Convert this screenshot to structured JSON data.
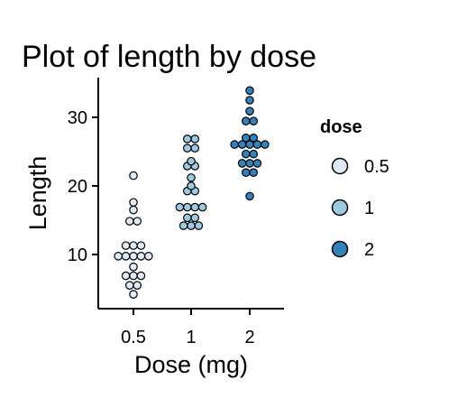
{
  "chart_data": {
    "type": "scatter",
    "subtype": "dotplot",
    "title": "Plot of length  by dose",
    "xlabel": "Dose (mg)",
    "ylabel": "Length",
    "categories": [
      "0.5",
      "1",
      "2"
    ],
    "yticks": [
      10,
      20,
      30
    ],
    "ylim": [
      2.2,
      35.5
    ],
    "grid": false,
    "legend": {
      "title": "dose",
      "position": "right",
      "entries": [
        "0.5",
        "1",
        "2"
      ]
    },
    "colors": {
      "0.5": "#deebf7",
      "1": "#9ecae1",
      "2": "#3182bd"
    },
    "series": [
      {
        "name": "0.5",
        "values": [
          4.2,
          11.5,
          7.3,
          5.8,
          6.4,
          10.0,
          11.2,
          11.2,
          5.2,
          7.0,
          15.2,
          21.5,
          17.6,
          9.7,
          14.5,
          10.0,
          8.2,
          9.4,
          16.5,
          9.7
        ]
      },
      {
        "name": "1",
        "values": [
          16.5,
          16.5,
          15.2,
          17.3,
          22.5,
          17.3,
          13.6,
          14.5,
          18.8,
          15.5,
          19.7,
          23.3,
          23.6,
          26.4,
          20.0,
          25.2,
          25.8,
          21.2,
          14.5,
          27.3
        ]
      },
      {
        "name": "2",
        "values": [
          23.6,
          18.5,
          33.9,
          25.5,
          26.4,
          32.5,
          26.7,
          21.5,
          23.3,
          29.5,
          25.5,
          26.4,
          22.4,
          24.5,
          24.8,
          30.9,
          26.4,
          27.3,
          29.4,
          23.0
        ]
      }
    ]
  }
}
